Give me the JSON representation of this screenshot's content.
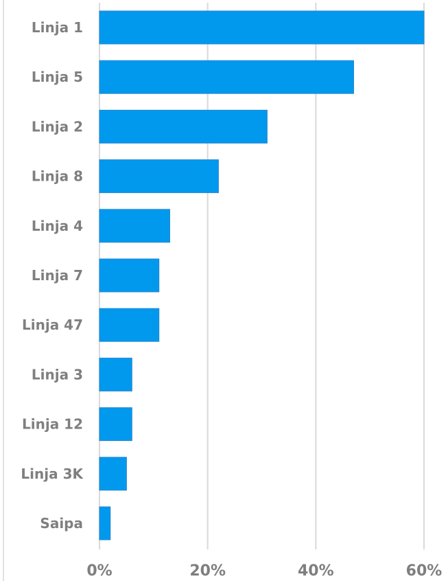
{
  "chart_data": {
    "type": "bar",
    "orientation": "horizontal",
    "categories": [
      "Linja 1",
      "Linja 5",
      "Linja 2",
      "Linja 8",
      "Linja 4",
      "Linja 7",
      "Linja 47",
      "Linja 3",
      "Linja 12",
      "Linja 3K",
      "Saipa"
    ],
    "values": [
      60,
      47,
      31,
      22,
      13,
      11,
      11,
      6,
      6,
      5,
      2
    ],
    "x_ticks": [
      "0%",
      "20%",
      "40%",
      "60%"
    ],
    "x_tick_values": [
      0,
      20,
      40,
      60
    ],
    "xlim": [
      0,
      60
    ],
    "grid": true,
    "legend": "none",
    "title": "",
    "xlabel": "",
    "ylabel": "",
    "colors": {
      "bar": "#0099ee",
      "bar_border": "#2a86d0",
      "grid": "#d9d9d9",
      "text": "#7f7f7f"
    }
  }
}
